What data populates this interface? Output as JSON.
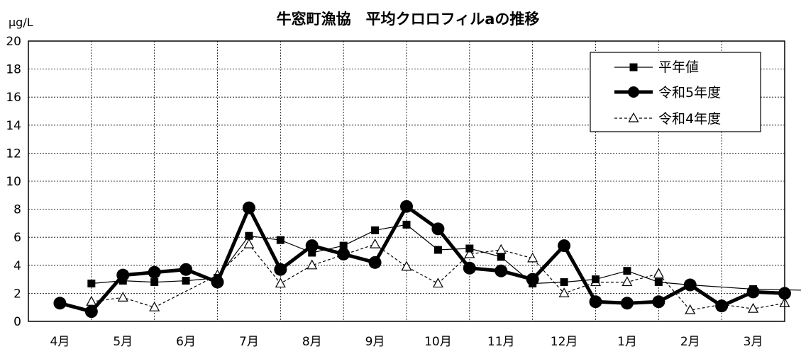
{
  "chart_data": {
    "type": "line",
    "title": "牛窓町漁協　平均クロロフィルaの推移",
    "ylabel": "μg/L",
    "xlabel": "",
    "ylim": [
      0,
      20
    ],
    "yticks": [
      0,
      2,
      4,
      6,
      8,
      10,
      12,
      14,
      16,
      18,
      20
    ],
    "categories": [
      "4月",
      "5月",
      "6月",
      "7月",
      "8月",
      "9月",
      "10月",
      "11月",
      "12月",
      "1月",
      "2月",
      "3月"
    ],
    "grid": true,
    "legend_position": "top-right",
    "series": [
      {
        "name": "平年値",
        "style": "thin-solid-square",
        "color": "#000000",
        "points": [
          {
            "x": 0.5,
            "y": 2.7
          },
          {
            "x": 1.0,
            "y": 2.9
          },
          {
            "x": 1.5,
            "y": 2.8
          },
          {
            "x": 2.0,
            "y": 2.9
          },
          {
            "x": 2.5,
            "y": 3.1
          },
          {
            "x": 3.0,
            "y": 6.1
          },
          {
            "x": 3.5,
            "y": 5.8
          },
          {
            "x": 4.0,
            "y": 4.9
          },
          {
            "x": 4.5,
            "y": 5.4
          },
          {
            "x": 5.0,
            "y": 6.5
          },
          {
            "x": 5.5,
            "y": 6.9
          },
          {
            "x": 6.0,
            "y": 5.1
          },
          {
            "x": 6.5,
            "y": 5.2
          },
          {
            "x": 7.0,
            "y": 4.6
          },
          {
            "x": 7.5,
            "y": 2.7
          },
          {
            "x": 8.0,
            "y": 2.8
          },
          {
            "x": 8.5,
            "y": 3.0
          },
          {
            "x": 9.0,
            "y": 3.6
          },
          {
            "x": 9.5,
            "y": 2.8
          },
          {
            "x": 10.0,
            "y": 2.6
          },
          {
            "x": 11.0,
            "y": 2.3
          },
          {
            "x": 12.0,
            "y": 2.2
          }
        ]
      },
      {
        "name": "令和5年度",
        "style": "thick-solid-circle",
        "color": "#000000",
        "points": [
          {
            "x": 0.0,
            "y": 1.3
          },
          {
            "x": 0.5,
            "y": 0.7
          },
          {
            "x": 1.0,
            "y": 3.3
          },
          {
            "x": 1.5,
            "y": 3.5
          },
          {
            "x": 2.0,
            "y": 3.7
          },
          {
            "x": 2.5,
            "y": 2.8
          },
          {
            "x": 3.0,
            "y": 8.1
          },
          {
            "x": 3.5,
            "y": 3.7
          },
          {
            "x": 4.0,
            "y": 5.4
          },
          {
            "x": 4.5,
            "y": 4.8
          },
          {
            "x": 5.0,
            "y": 4.2
          },
          {
            "x": 5.5,
            "y": 8.2
          },
          {
            "x": 6.0,
            "y": 6.6
          },
          {
            "x": 6.5,
            "y": 3.8
          },
          {
            "x": 7.0,
            "y": 3.6
          },
          {
            "x": 7.5,
            "y": 3.0
          },
          {
            "x": 8.0,
            "y": 5.4
          },
          {
            "x": 8.5,
            "y": 1.4
          },
          {
            "x": 9.0,
            "y": 1.3
          },
          {
            "x": 9.5,
            "y": 1.4
          },
          {
            "x": 10.0,
            "y": 2.6
          },
          {
            "x": 10.5,
            "y": 1.1
          },
          {
            "x": 11.0,
            "y": 2.1
          },
          {
            "x": 11.5,
            "y": 2.0
          }
        ]
      },
      {
        "name": "令和4年度",
        "style": "dashed-open-triangle",
        "color": "#000000",
        "points": [
          {
            "x": 0.5,
            "y": 1.4
          },
          {
            "x": 1.0,
            "y": 1.7
          },
          {
            "x": 1.5,
            "y": 1.0
          },
          {
            "x": 2.5,
            "y": 3.3
          },
          {
            "x": 3.0,
            "y": 5.5
          },
          {
            "x": 3.5,
            "y": 2.7
          },
          {
            "x": 4.0,
            "y": 4.0
          },
          {
            "x": 5.0,
            "y": 5.5
          },
          {
            "x": 5.5,
            "y": 3.9
          },
          {
            "x": 6.0,
            "y": 2.7
          },
          {
            "x": 6.5,
            "y": 4.8
          },
          {
            "x": 7.0,
            "y": 5.1
          },
          {
            "x": 7.5,
            "y": 4.5
          },
          {
            "x": 8.0,
            "y": 2.0
          },
          {
            "x": 8.5,
            "y": 2.8
          },
          {
            "x": 9.0,
            "y": 2.8
          },
          {
            "x": 9.5,
            "y": 3.4
          },
          {
            "x": 10.0,
            "y": 0.8
          },
          {
            "x": 10.5,
            "y": 1.2
          },
          {
            "x": 11.0,
            "y": 0.9
          },
          {
            "x": 11.5,
            "y": 1.3
          }
        ]
      }
    ]
  }
}
